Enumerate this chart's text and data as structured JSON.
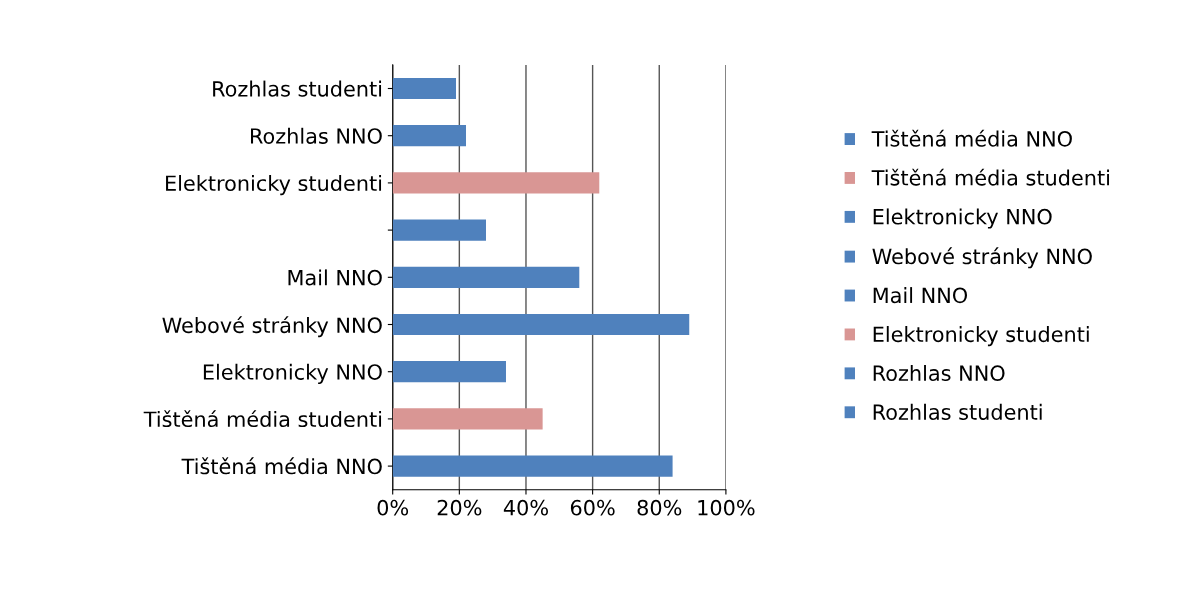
{
  "chart_data": {
    "type": "bar",
    "orientation": "horizontal",
    "categories": [
      "Rozhlas studenti",
      "Rozhlas NNO",
      "Elektronicky studenti",
      null,
      "Mail NNO",
      "Webové stránky NNO",
      "Elektronicky NNO",
      "Tištěná média studenti",
      "Tištěná média NNO"
    ],
    "series": [
      {
        "name": "Rozhlas studenti",
        "color": "#4f81bd",
        "values": [
          19,
          null,
          null,
          null,
          null,
          null,
          null,
          null,
          null
        ]
      },
      {
        "name": "Rozhlas NNO",
        "color": "#4f81bd",
        "values": [
          null,
          22,
          null,
          null,
          null,
          null,
          null,
          null,
          null
        ]
      },
      {
        "name": "Elektronicky studenti",
        "color": "#d99694",
        "values": [
          null,
          null,
          62,
          null,
          null,
          null,
          null,
          null,
          null
        ]
      },
      {
        "color": "#4f81bd",
        "values": [
          null,
          null,
          null,
          28,
          null,
          null,
          null,
          null,
          null
        ]
      },
      {
        "name": "Mail NNO",
        "color": "#4f81bd",
        "values": [
          null,
          null,
          null,
          null,
          56,
          null,
          null,
          null,
          null
        ]
      },
      {
        "name": "Webové stránky NNO",
        "color": "#4f81bd",
        "values": [
          null,
          null,
          null,
          null,
          null,
          89,
          null,
          null,
          null
        ]
      },
      {
        "name": "Elektronicky NNO",
        "color": "#4f81bd",
        "values": [
          null,
          null,
          null,
          null,
          null,
          null,
          34,
          null,
          null
        ]
      },
      {
        "name": "Tištěná média studenti",
        "color": "#d99694",
        "values": [
          null,
          null,
          null,
          null,
          null,
          null,
          null,
          45,
          null
        ]
      },
      {
        "name": "Tištěná média NNO",
        "color": "#4f81bd",
        "values": [
          null,
          null,
          null,
          null,
          null,
          null,
          null,
          null,
          84
        ]
      }
    ],
    "xlim": [
      0,
      100
    ],
    "xticks": [
      {
        "value": 0,
        "label": "0%"
      },
      {
        "value": 20,
        "label": "20%"
      },
      {
        "value": 40,
        "label": "40%"
      },
      {
        "value": 60,
        "label": "60%"
      },
      {
        "value": 80,
        "label": "80%"
      },
      {
        "value": 100,
        "label": "100%"
      }
    ],
    "grid": "x",
    "legend": "right"
  }
}
